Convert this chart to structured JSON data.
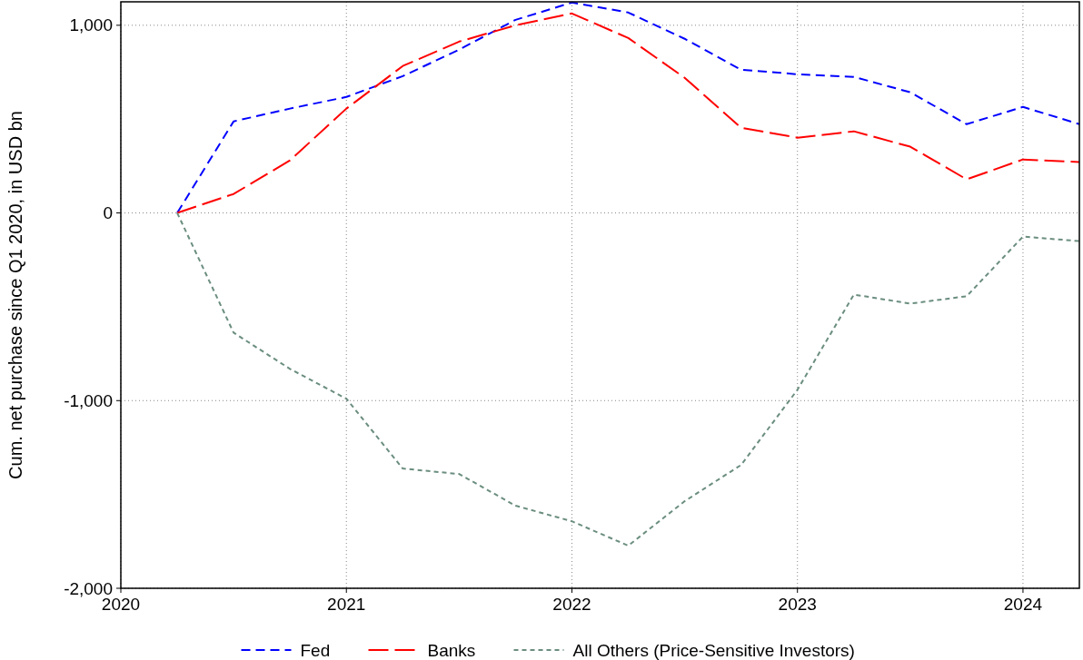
{
  "chart_data": {
    "type": "line",
    "ylabel": "Cum. net purchase since Q1 2020, in USD bn",
    "x": [
      2020.25,
      2020.5,
      2020.75,
      2021,
      2021.25,
      2021.5,
      2021.75,
      2022,
      2022.25,
      2022.5,
      2022.75,
      2023,
      2023.25,
      2023.5,
      2023.75,
      2024,
      2024.25
    ],
    "series": [
      {
        "name": "Fed",
        "color": "#0000ff",
        "line_style": "dashed",
        "values": [
          0,
          488,
          556,
          618,
          729,
          870,
          1029,
          1121,
          1068,
          928,
          763,
          739,
          725,
          643,
          473,
          565,
          473
        ]
      },
      {
        "name": "Banks",
        "color": "#ff0000",
        "line_style": "longdash",
        "values": [
          0,
          101,
          280,
          556,
          783,
          913,
          1000,
          1063,
          932,
          720,
          454,
          401,
          435,
          353,
          179,
          285,
          271
        ]
      },
      {
        "name": "All Others (Price-Sensitive Investors)",
        "color": "#6b8e7f",
        "line_style": "dotted",
        "values": [
          0,
          -638,
          -831,
          -990,
          -1362,
          -1391,
          -1560,
          -1643,
          -1773,
          -1536,
          -1343,
          -942,
          -435,
          -483,
          -444,
          -126,
          -150
        ]
      }
    ],
    "xlim": [
      2020,
      2024.25
    ],
    "xticks": [
      2020,
      2021,
      2022,
      2023,
      2024
    ],
    "ylim": [
      -2000,
      1125
    ],
    "yticks": [
      {
        "value": -2000,
        "label": "-2,000"
      },
      {
        "value": -1000,
        "label": "-1,000"
      },
      0,
      {
        "value": 1000,
        "label": "1,000"
      }
    ],
    "grid": true,
    "legend": "bottom"
  }
}
